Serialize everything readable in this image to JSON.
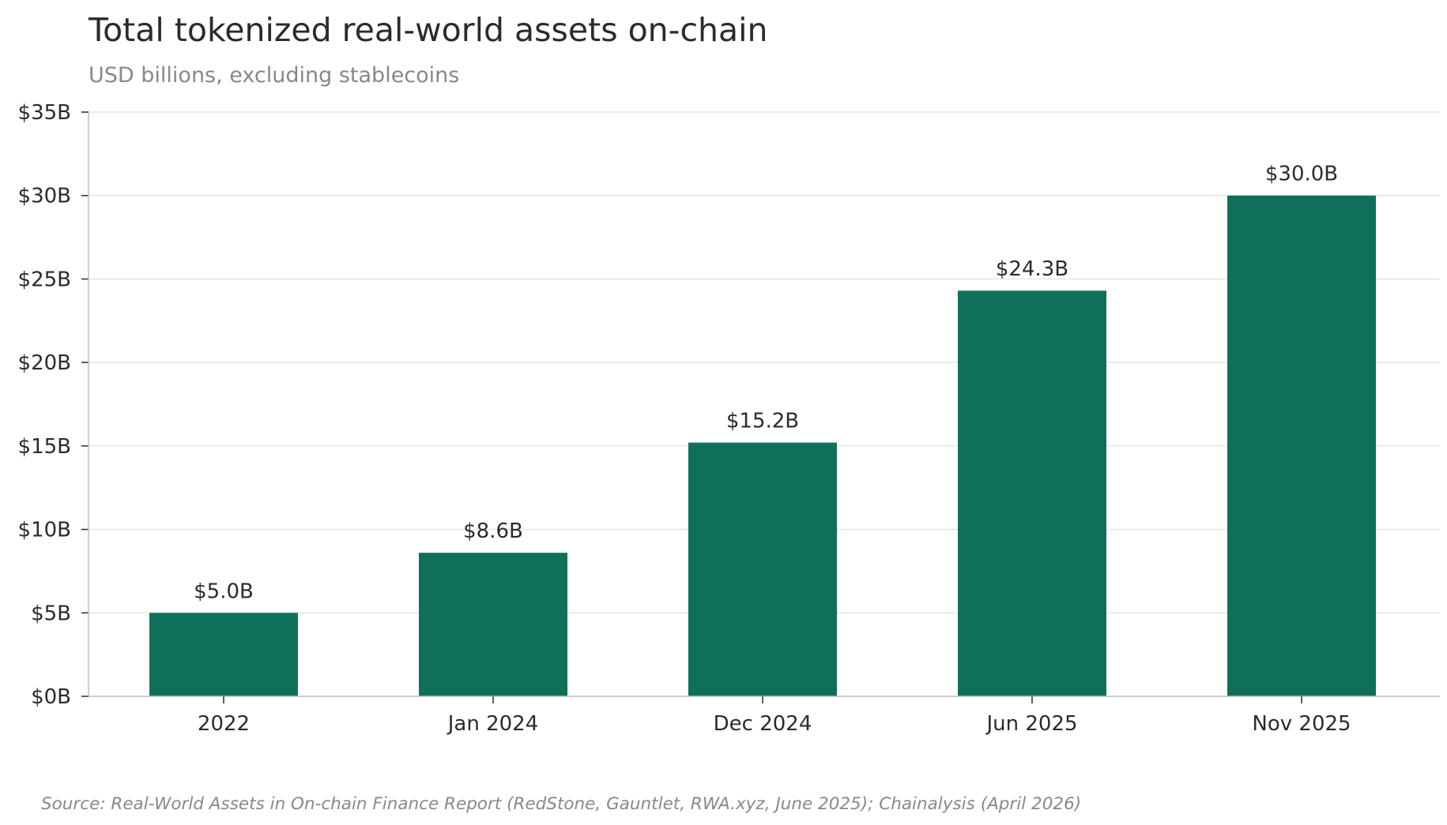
{
  "colors": {
    "bar": "#0f7059",
    "grid": "#e6e6e6",
    "axis": "#bdbdbd",
    "text": "#2b2b2b",
    "muted": "#888888"
  },
  "chart_data": {
    "type": "bar",
    "title": "Total tokenized real-world assets on-chain",
    "subtitle": "USD billions, excluding stablecoins",
    "xlabel": "",
    "ylabel": "",
    "categories": [
      "2022",
      "Jan 2024",
      "Dec 2024",
      "Jun 2025",
      "Nov 2025"
    ],
    "values": [
      5.0,
      8.6,
      15.2,
      24.3,
      30.0
    ],
    "data_labels": [
      "$5.0B",
      "$8.6B",
      "$15.2B",
      "$24.3B",
      "$30.0B"
    ],
    "ylim": [
      0,
      35
    ],
    "yticks": [
      0,
      5,
      10,
      15,
      20,
      25,
      30,
      35
    ],
    "ytick_labels": [
      "$0B",
      "$5B",
      "$10B",
      "$15B",
      "$20B",
      "$25B",
      "$30B",
      "$35B"
    ],
    "grid": true,
    "legend": "none",
    "source": "Source: Real-World Assets in On-chain Finance Report (RedStone, Gauntlet, RWA.xyz, June 2025); Chainalysis (April 2026)"
  }
}
